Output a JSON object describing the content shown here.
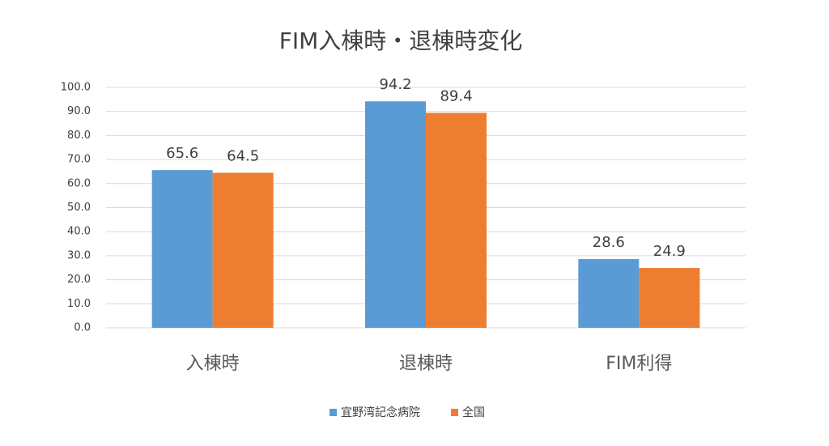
{
  "chart_data": {
    "type": "bar",
    "title": "FIM入棟時・退棟時変化",
    "categories": [
      "入棟時",
      "退棟時",
      "FIM利得"
    ],
    "series": [
      {
        "name": "宜野湾記念病院",
        "color": "#5b9bd5",
        "values": [
          65.6,
          94.2,
          28.6
        ]
      },
      {
        "name": "全国",
        "color": "#ed7d31",
        "values": [
          64.5,
          89.4,
          24.9
        ]
      }
    ],
    "ylim": [
      0,
      100
    ],
    "yticks": [
      {
        "value": 0,
        "label": "0.0"
      },
      {
        "value": 10,
        "label": "10.0"
      },
      {
        "value": 20,
        "label": "20.0"
      },
      {
        "value": 30,
        "label": "30.0"
      },
      {
        "value": 40,
        "label": "40.0"
      },
      {
        "value": 50,
        "label": "50.0"
      },
      {
        "value": 60,
        "label": "60.0"
      },
      {
        "value": 70,
        "label": "70.0"
      },
      {
        "value": 80,
        "label": "80.0"
      },
      {
        "value": 90,
        "label": "90.0"
      },
      {
        "value": 100,
        "label": "100.0"
      }
    ],
    "grid": true,
    "legend": "bottom"
  }
}
